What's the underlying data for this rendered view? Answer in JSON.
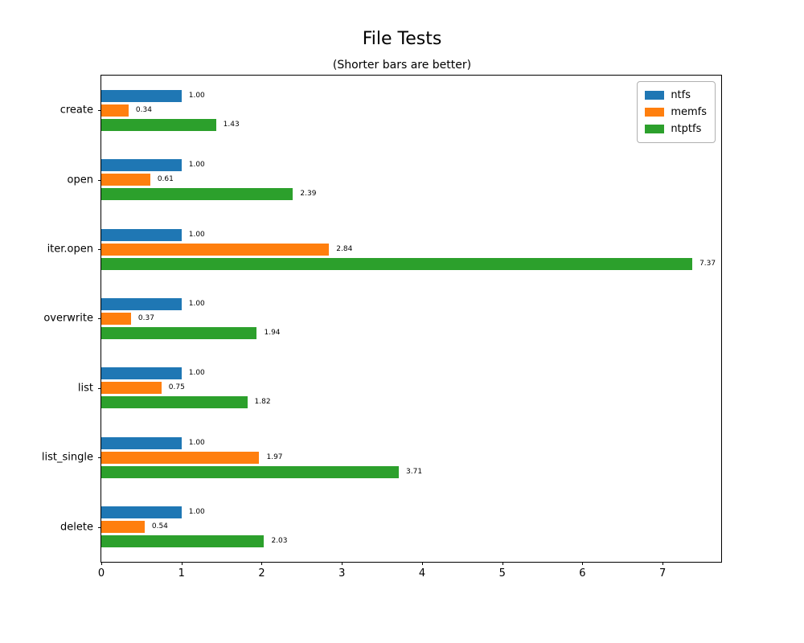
{
  "chart_data": {
    "type": "bar",
    "orientation": "horizontal",
    "title": "File Tests",
    "subtitle": "(Shorter bars are better)",
    "categories": [
      "create",
      "open",
      "iter.open",
      "overwrite",
      "list",
      "list_single",
      "delete"
    ],
    "series": [
      {
        "name": "ntfs",
        "color": "#1f77b4",
        "values": [
          1.0,
          1.0,
          1.0,
          1.0,
          1.0,
          1.0,
          1.0
        ]
      },
      {
        "name": "memfs",
        "color": "#ff7f0e",
        "values": [
          0.34,
          0.61,
          2.84,
          0.37,
          0.75,
          1.97,
          0.54
        ]
      },
      {
        "name": "ntptfs",
        "color": "#2ca02c",
        "values": [
          1.43,
          2.39,
          7.37,
          1.94,
          1.82,
          3.71,
          2.03
        ]
      }
    ],
    "bar_label_format": "2-decimals",
    "x_ticks": [
      0,
      1,
      2,
      3,
      4,
      5,
      6,
      7
    ],
    "xlim": [
      0,
      7.73
    ],
    "grid": false,
    "legend_position": "upper-right",
    "axis_color": "#000000",
    "background_color": "#ffffff"
  }
}
